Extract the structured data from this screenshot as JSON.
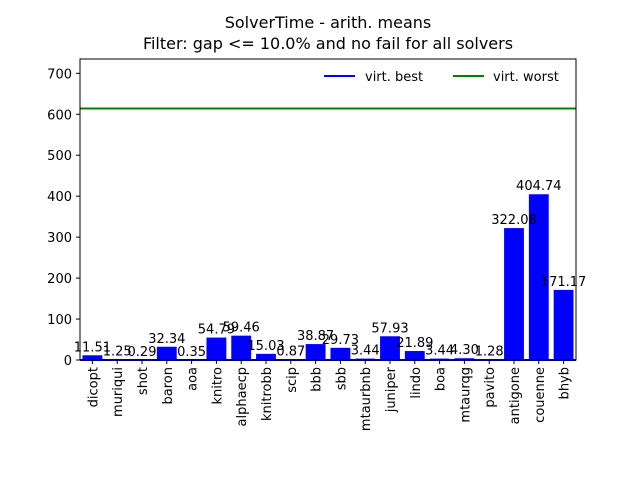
{
  "chart_data": {
    "type": "bar",
    "title_lines": [
      "SolverTime - arith. means",
      "Filter: gap <= 10.0% and no fail for all solvers"
    ],
    "categories": [
      "dicopt",
      "muriqui",
      "shot",
      "baron",
      "aoa",
      "knitro",
      "alphaecp",
      "knitrobb",
      "scip",
      "bbb",
      "sbb",
      "mtaurbnb",
      "juniper",
      "lindo",
      "boa",
      "mtaurqg",
      "pavito",
      "antigone",
      "couenne",
      "bhyb"
    ],
    "values": [
      11.51,
      1.25,
      0.29,
      32.34,
      0.35,
      54.79,
      59.46,
      15.03,
      0.87,
      38.87,
      29.73,
      3.44,
      57.93,
      21.89,
      3.44,
      4.3,
      1.28,
      322.08,
      404.74,
      171.17
    ],
    "value_labels": [
      "11.51",
      "1.25",
      "0.29",
      "32.34",
      "0.35",
      "54.79",
      "59.46",
      "15.03",
      "0.87",
      "38.87",
      "29.73",
      "3.44",
      "57.93",
      "21.89",
      "3.44",
      "4.30",
      "1.28",
      "322.08",
      "404.74",
      "171.17"
    ],
    "bar_color": "#0000ff",
    "ylim": [
      0,
      735
    ],
    "yticks": [
      0,
      100,
      200,
      300,
      400,
      500,
      600,
      700
    ],
    "xlabel": "",
    "ylabel": "",
    "grid": false,
    "reference_lines": [
      {
        "name": "virt. best",
        "value": 0,
        "color": "#0000ff"
      },
      {
        "name": "virt. worst",
        "value": 614,
        "color": "#008000"
      }
    ],
    "legend_position": "top-right"
  }
}
